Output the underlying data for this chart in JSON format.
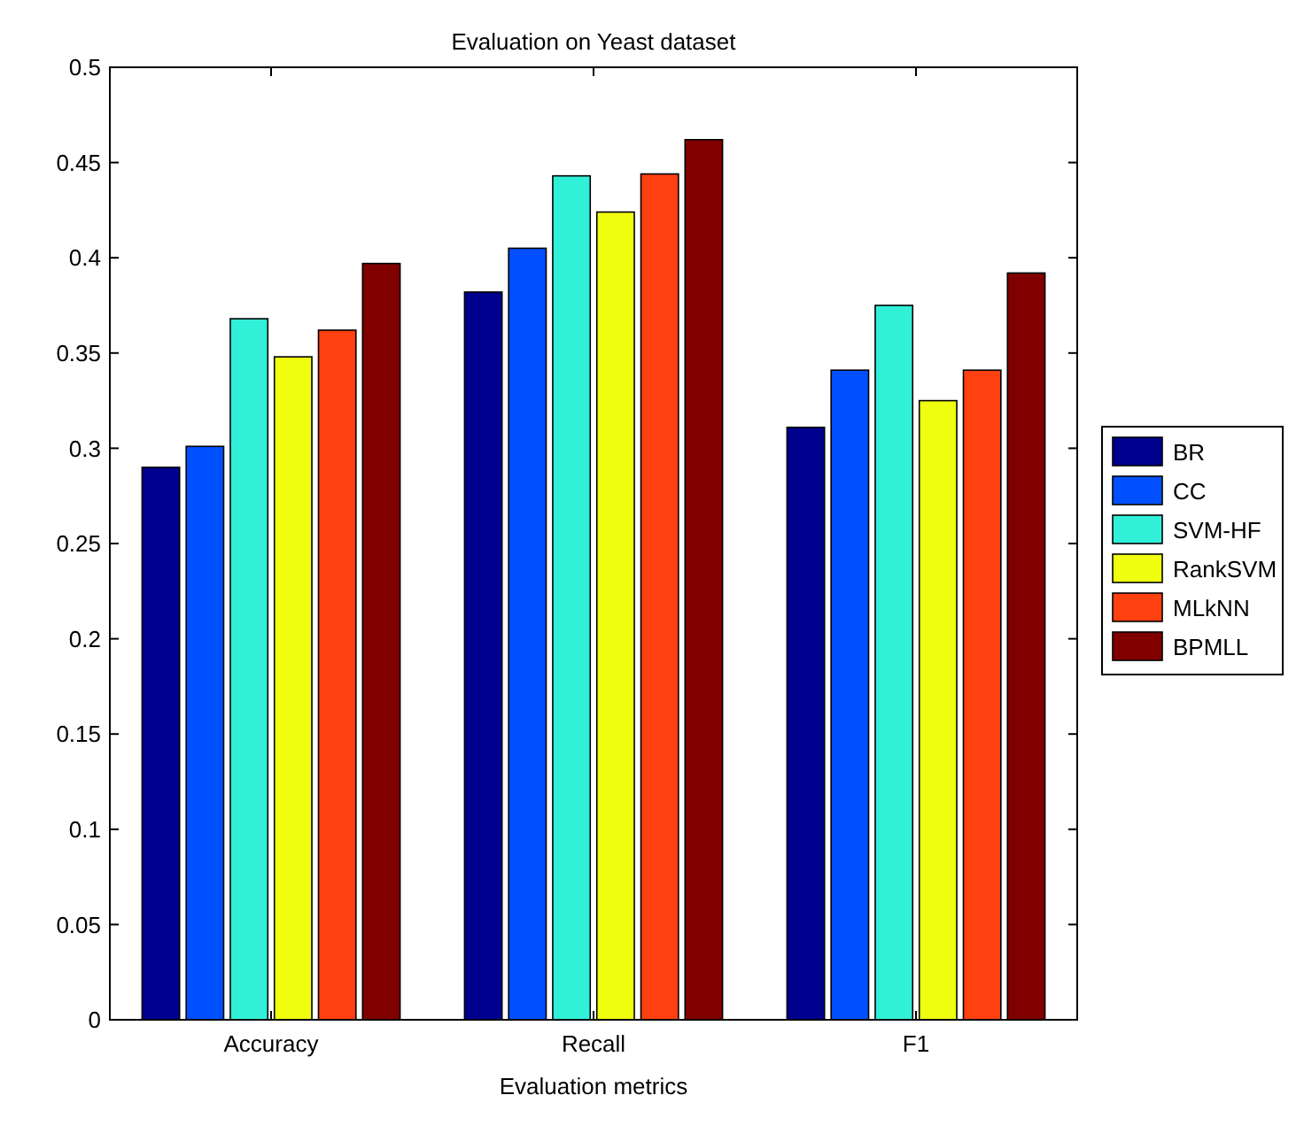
{
  "chart_data": {
    "type": "bar",
    "title": "Evaluation on Yeast dataset",
    "xlabel": "Evaluation metrics",
    "categories": [
      "Accuracy",
      "Recall",
      "F1"
    ],
    "series": [
      {
        "name": "BR",
        "color": "#00008f",
        "values": [
          0.29,
          0.382,
          0.311
        ]
      },
      {
        "name": "CC",
        "color": "#0050ff",
        "values": [
          0.301,
          0.405,
          0.341
        ]
      },
      {
        "name": "SVM-HF",
        "color": "#30f0d8",
        "values": [
          0.368,
          0.443,
          0.375
        ]
      },
      {
        "name": "RankSVM",
        "color": "#f0ff10",
        "values": [
          0.348,
          0.424,
          0.325
        ]
      },
      {
        "name": "MLkNN",
        "color": "#ff4010",
        "values": [
          0.362,
          0.444,
          0.341
        ]
      },
      {
        "name": "BPMLL",
        "color": "#800000",
        "values": [
          0.397,
          0.462,
          0.392
        ]
      }
    ],
    "ylim": [
      0,
      0.5
    ],
    "yticks": [
      0,
      0.05,
      0.1,
      0.15,
      0.2,
      0.25,
      0.3,
      0.35,
      0.4,
      0.45,
      0.5
    ],
    "grid": false,
    "legend": "right"
  }
}
